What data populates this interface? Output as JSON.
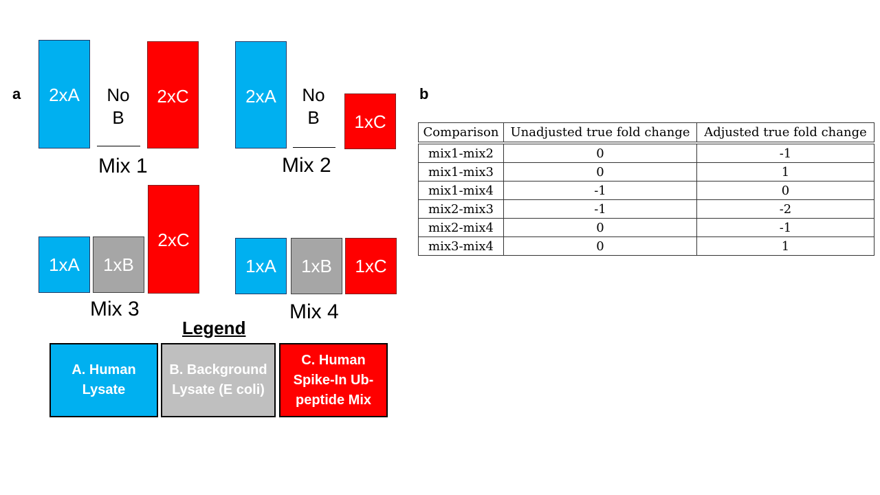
{
  "panel_a": {
    "letter": "a",
    "mix1": {
      "label": "Mix 1",
      "a": "2xA",
      "b_line1": "No",
      "b_line2": "B",
      "c": "2xC"
    },
    "mix2": {
      "label": "Mix 2",
      "a": "2xA",
      "b_line1": "No",
      "b_line2": "B",
      "c": "1xC"
    },
    "mix3": {
      "label": "Mix 3",
      "a": "1xA",
      "b": "1xB",
      "c": "2xC"
    },
    "mix4": {
      "label": "Mix 4",
      "a": "1xA",
      "b": "1xB",
      "c": "1xC"
    },
    "legend": {
      "title": "Legend",
      "a": "A. Human Lysate",
      "b": "B. Background Lysate (E coli)",
      "c": "C. Human Spike-In Ub-peptide Mix"
    },
    "colors": {
      "a": "#00b0f0",
      "b": "#a6a6a6",
      "b_legend": "#bfbfbf",
      "c": "#ff0000"
    }
  },
  "panel_b": {
    "letter": "b",
    "table": {
      "headers": [
        "Comparison",
        "Unadjusted true fold change",
        "Adjusted true fold change"
      ],
      "rows": [
        [
          "mix1-mix2",
          "0",
          "-1"
        ],
        [
          "mix1-mix3",
          "0",
          "1"
        ],
        [
          "mix1-mix4",
          "-1",
          "0"
        ],
        [
          "mix2-mix3",
          "-1",
          "-2"
        ],
        [
          "mix2-mix4",
          "0",
          "-1"
        ],
        [
          "mix3-mix4",
          "0",
          "1"
        ]
      ]
    }
  }
}
